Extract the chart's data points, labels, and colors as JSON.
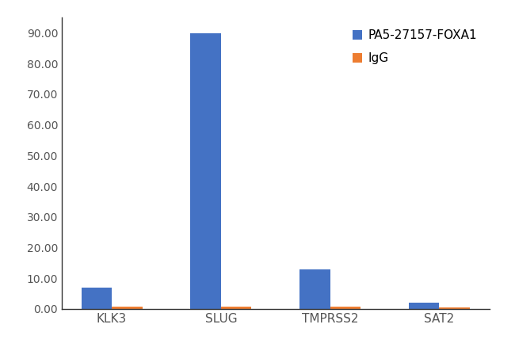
{
  "categories": [
    "KLK3",
    "SLUG",
    "TMPRSS2",
    "SAT2"
  ],
  "series": {
    "PA5-27157-FOXA1": [
      7.0,
      90.0,
      13.0,
      2.0
    ],
    "IgG": [
      0.8,
      0.8,
      0.8,
      0.6
    ]
  },
  "bar_colors": {
    "PA5-27157-FOXA1": "#4472C4",
    "IgG": "#ED7D31"
  },
  "legend_labels": [
    "PA5-27157-FOXA1",
    "IgG"
  ],
  "ylim": [
    0,
    95
  ],
  "yticks": [
    0.0,
    10.0,
    20.0,
    30.0,
    40.0,
    50.0,
    60.0,
    70.0,
    80.0,
    90.0
  ],
  "ylabel": "",
  "xlabel": "",
  "background_color": "#ffffff",
  "bar_width": 0.28,
  "tick_color": "#aaaaaa",
  "spine_color": "#333333",
  "tick_fontsize": 10,
  "xlabel_fontsize": 11
}
